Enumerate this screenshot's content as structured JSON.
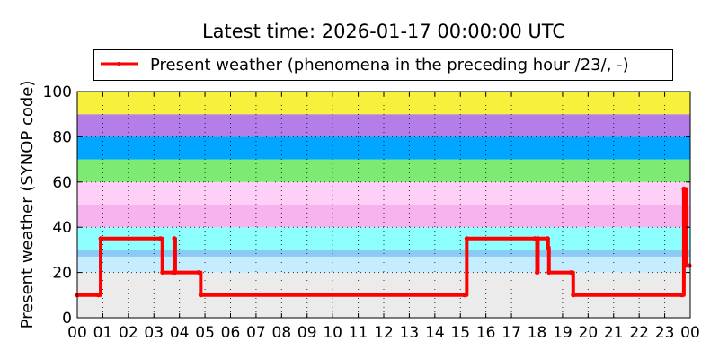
{
  "chart_data": {
    "type": "line",
    "title": "Latest time: 2026-01-17 00:00:00 UTC",
    "ylabel": "Present weather (SYNOP code)",
    "xlabel": "",
    "ylim": [
      0,
      100
    ],
    "yticks": [
      0,
      20,
      40,
      60,
      80,
      100
    ],
    "xlim_hours": [
      0,
      24
    ],
    "xtick_labels": [
      "00",
      "01",
      "02",
      "03",
      "04",
      "05",
      "06",
      "07",
      "08",
      "09",
      "10",
      "11",
      "12",
      "13",
      "14",
      "15",
      "16",
      "17",
      "18",
      "19",
      "20",
      "21",
      "22",
      "23",
      "00"
    ],
    "grid": true,
    "legend_placement": "top-center",
    "bands": [
      {
        "from": 0,
        "to": 20,
        "color": "#ebebeb"
      },
      {
        "from": 20,
        "to": 27,
        "color": "#c6ecff"
      },
      {
        "from": 27,
        "to": 30,
        "color": "#8ccaf5"
      },
      {
        "from": 30,
        "to": 40,
        "color": "#8effff"
      },
      {
        "from": 40,
        "to": 50,
        "color": "#f7b3ee"
      },
      {
        "from": 50,
        "to": 60,
        "color": "#ffd0f7"
      },
      {
        "from": 60,
        "to": 70,
        "color": "#7deb73"
      },
      {
        "from": 70,
        "to": 80,
        "color": "#00a6ff"
      },
      {
        "from": 80,
        "to": 90,
        "color": "#b57de8"
      },
      {
        "from": 90,
        "to": 100,
        "color": "#f7f03c"
      }
    ],
    "series": [
      {
        "name": "Present weather (phenomena in the preceding hour /23/, -)",
        "color": "#ff0000",
        "points": [
          [
            "00:00",
            10
          ],
          [
            "00:50",
            10
          ],
          [
            "00:55",
            35
          ],
          [
            "03:15",
            35
          ],
          [
            "03:20",
            20
          ],
          [
            "03:45",
            20
          ],
          [
            "03:48",
            35
          ],
          [
            "03:50",
            20
          ],
          [
            "04:45",
            20
          ],
          [
            "04:50",
            10
          ],
          [
            "15:10",
            10
          ],
          [
            "15:15",
            35
          ],
          [
            "17:55",
            35
          ],
          [
            "18:00",
            20
          ],
          [
            "18:02",
            35
          ],
          [
            "18:25",
            35
          ],
          [
            "18:26",
            31
          ],
          [
            "18:28",
            20
          ],
          [
            "19:20",
            20
          ],
          [
            "19:25",
            10
          ],
          [
            "23:40",
            10
          ],
          [
            "23:45",
            57
          ],
          [
            "23:50",
            23
          ],
          [
            "23:58",
            23
          ]
        ]
      }
    ]
  }
}
